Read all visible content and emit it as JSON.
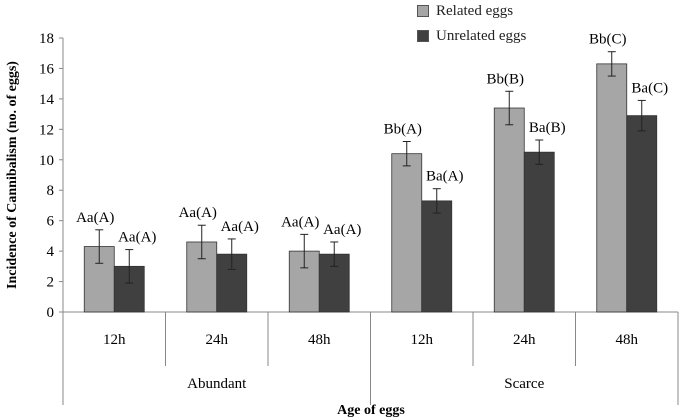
{
  "chart_data": {
    "type": "bar",
    "ylabel": "Incidence of Cannibalism (no. of eggs)",
    "xlabel": "Age of eggs",
    "ylim": [
      0,
      18
    ],
    "yticks": [
      "0",
      "2",
      "4",
      "6",
      "8",
      "10",
      "12",
      "14",
      "16",
      "18"
    ],
    "categories": [
      "12h",
      "24h",
      "48h",
      "12h",
      "24h",
      "48h"
    ],
    "groups": [
      {
        "label": "Abundant",
        "span": 3
      },
      {
        "label": "Scarce",
        "span": 3
      }
    ],
    "legend_position": "top-right",
    "series": [
      {
        "name": "Related eggs",
        "color": "#a6a6a6",
        "values": [
          4.3,
          4.6,
          4.0,
          10.4,
          13.4,
          16.3
        ],
        "errors": [
          1.1,
          1.1,
          1.1,
          0.8,
          1.1,
          0.8
        ],
        "labels": [
          "Aa(A)",
          "Aa(A)",
          "Aa(A)",
          "Bb(A)",
          "Bb(B)",
          "Bb(C)"
        ]
      },
      {
        "name": "Unrelated eggs",
        "color": "#404040",
        "values": [
          3.0,
          3.8,
          3.8,
          7.3,
          10.5,
          12.9
        ],
        "errors": [
          1.1,
          1.0,
          0.8,
          0.8,
          0.8,
          1.0
        ],
        "labels": [
          "Aa(A)",
          "Aa(A)",
          "Aa(A)",
          "Ba(A)",
          "Ba(B)",
          "Ba(C)"
        ]
      }
    ]
  }
}
